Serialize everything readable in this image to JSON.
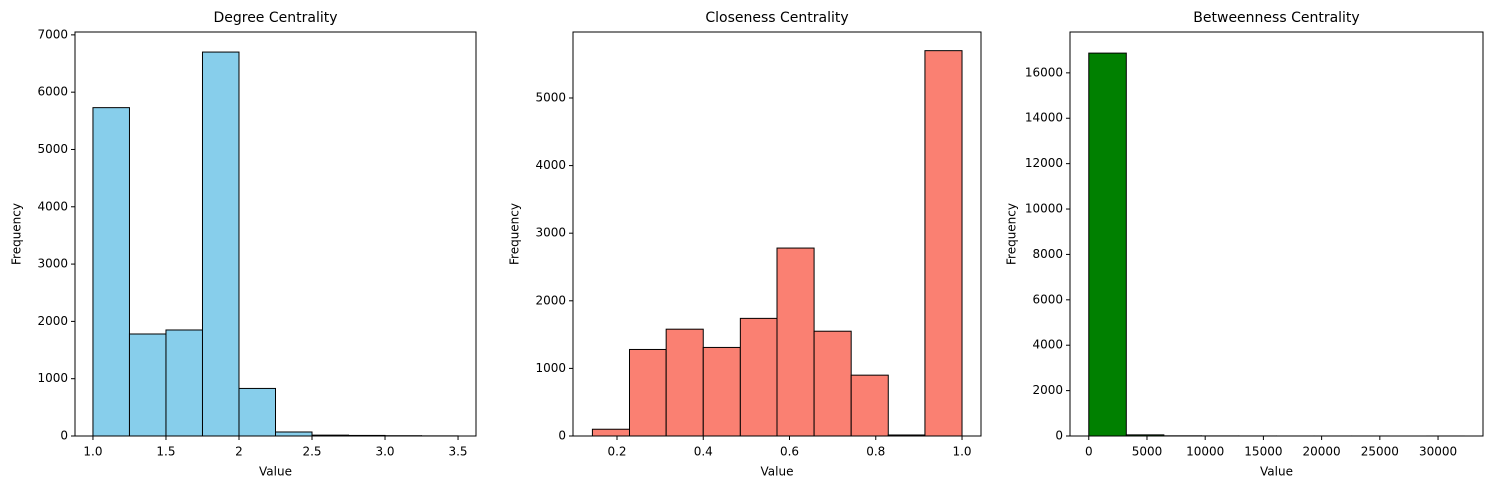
{
  "chart_data": [
    {
      "type": "histogram",
      "title": "Degree Centrality",
      "xlabel": "Value",
      "ylabel": "Frequency",
      "color": "#87ceeb",
      "bins": [
        1.0,
        1.25,
        1.5,
        1.75,
        2.0,
        2.25,
        2.5,
        2.75,
        3.0,
        3.25,
        3.5
      ],
      "values": [
        5730,
        1780,
        1850,
        6700,
        830,
        70,
        15,
        10,
        5,
        2
      ],
      "xlim": [
        0.877,
        3.623
      ],
      "ylim": [
        0,
        7050
      ],
      "xticks": [
        {
          "value": 1,
          "label": "1.0"
        },
        1.5,
        2.0,
        2.5,
        {
          "value": 3,
          "label": "3.0"
        },
        3.5
      ],
      "yticks": [
        0,
        1000,
        2000,
        3000,
        4000,
        5000,
        6000,
        7000
      ]
    },
    {
      "type": "histogram",
      "title": "Closeness Centrality",
      "xlabel": "Value",
      "ylabel": "Frequency",
      "color": "#fa8072",
      "bins": [
        0.143,
        0.229,
        0.314,
        0.4,
        0.486,
        0.571,
        0.657,
        0.743,
        0.829,
        0.914,
        1.0
      ],
      "values": [
        100,
        1280,
        1580,
        1310,
        1740,
        2780,
        1550,
        900,
        15,
        5700
      ],
      "xlim": [
        0.098,
        1.044
      ],
      "ylim": [
        0,
        5976
      ],
      "xticks": [
        0.2,
        0.4,
        0.6,
        0.8,
        {
          "value": 1,
          "label": "1.0"
        }
      ],
      "yticks": [
        0,
        1000,
        2000,
        3000,
        4000,
        5000
      ]
    },
    {
      "type": "histogram",
      "title": "Betweenness Centrality",
      "xlabel": "Value",
      "ylabel": "Frequency",
      "color": "#008000",
      "bins": [
        0,
        3225,
        6450,
        9675,
        12900,
        16125,
        19350,
        22575,
        25800,
        29025,
        32250
      ],
      "values": [
        16870,
        50,
        8,
        4,
        2,
        1,
        1,
        1,
        0,
        1
      ],
      "xlim": [
        -1612,
        33862
      ],
      "ylim": [
        0,
        17800
      ],
      "xticks": [
        0,
        5000,
        10000,
        15000,
        20000,
        25000,
        30000
      ],
      "yticks": [
        0,
        2000,
        4000,
        6000,
        8000,
        10000,
        12000,
        14000,
        16000
      ]
    }
  ]
}
